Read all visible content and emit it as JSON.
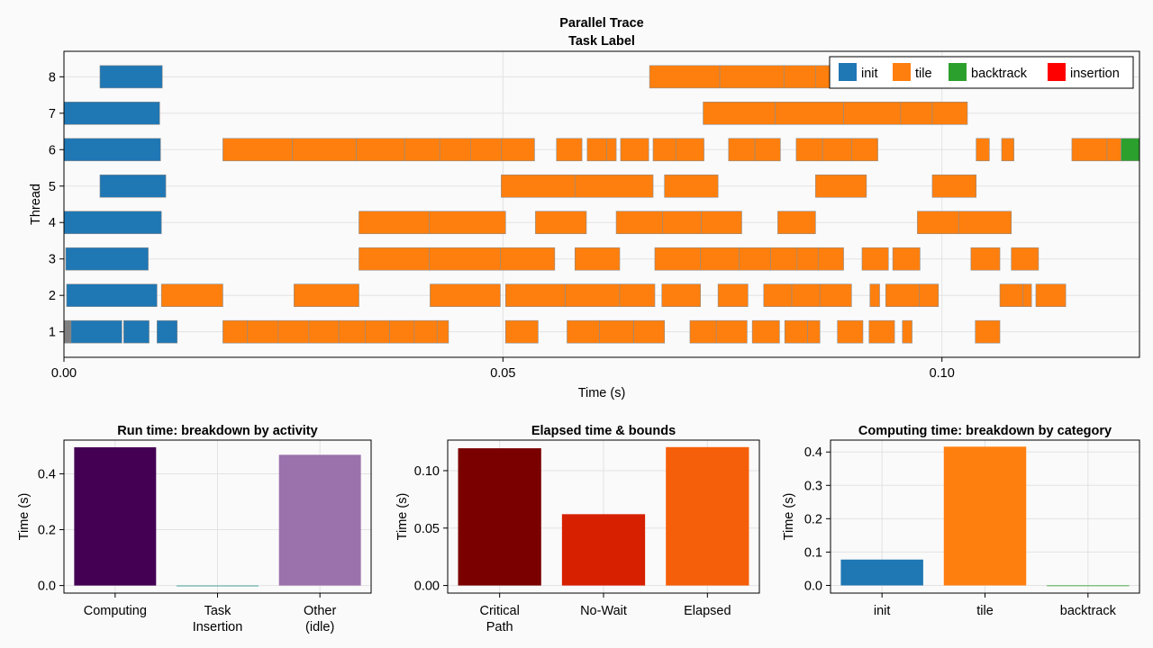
{
  "chart_data": [
    {
      "type": "gantt",
      "title": "Parallel Trace",
      "subtitle": "Task Label",
      "xlabel": "Time (s)",
      "ylabel": "Thread",
      "xlim": [
        0.0,
        0.1225
      ],
      "ylim": [
        0.3,
        8.7
      ],
      "xticks": [
        {
          "value": 0.0,
          "label": "0.00"
        },
        {
          "value": 0.05,
          "label": "0.05"
        },
        {
          "value": 0.1,
          "label": "0.10"
        }
      ],
      "yticks": [
        1,
        2,
        3,
        4,
        5,
        6,
        7,
        8
      ],
      "legend_position": "top-right",
      "legend": [
        {
          "label": "init",
          "color": "#1f77b4"
        },
        {
          "label": "tile",
          "color": "#ff7f0e"
        },
        {
          "label": "backtrack",
          "color": "#2ca02c"
        },
        {
          "label": "insertion",
          "color": "#ff0000"
        }
      ],
      "tasks": [
        {
          "thread": 1,
          "category": "other",
          "start": 0.0,
          "end": 0.0008
        },
        {
          "thread": 1,
          "category": "init",
          "start": 0.0008,
          "end": 0.0066
        },
        {
          "thread": 1,
          "category": "init",
          "start": 0.0068,
          "end": 0.0097
        },
        {
          "thread": 1,
          "category": "init",
          "start": 0.0106,
          "end": 0.0129
        },
        {
          "thread": 1,
          "category": "tile",
          "start": 0.0181,
          "end": 0.0209
        },
        {
          "thread": 1,
          "category": "tile",
          "start": 0.0209,
          "end": 0.0244
        },
        {
          "thread": 1,
          "category": "tile",
          "start": 0.0244,
          "end": 0.0279
        },
        {
          "thread": 1,
          "category": "tile",
          "start": 0.0279,
          "end": 0.0313
        },
        {
          "thread": 1,
          "category": "tile",
          "start": 0.0313,
          "end": 0.0343
        },
        {
          "thread": 1,
          "category": "tile",
          "start": 0.0343,
          "end": 0.0371
        },
        {
          "thread": 1,
          "category": "tile",
          "start": 0.0371,
          "end": 0.0399
        },
        {
          "thread": 1,
          "category": "tile",
          "start": 0.0399,
          "end": 0.0425
        },
        {
          "thread": 1,
          "category": "tile",
          "start": 0.0425,
          "end": 0.0438
        },
        {
          "thread": 1,
          "category": "tile",
          "start": 0.0503,
          "end": 0.054
        },
        {
          "thread": 1,
          "category": "tile",
          "start": 0.0573,
          "end": 0.061
        },
        {
          "thread": 1,
          "category": "tile",
          "start": 0.061,
          "end": 0.0649
        },
        {
          "thread": 1,
          "category": "tile",
          "start": 0.0649,
          "end": 0.0684
        },
        {
          "thread": 1,
          "category": "tile",
          "start": 0.0713,
          "end": 0.0743
        },
        {
          "thread": 1,
          "category": "tile",
          "start": 0.0743,
          "end": 0.0778
        },
        {
          "thread": 1,
          "category": "tile",
          "start": 0.0784,
          "end": 0.0815
        },
        {
          "thread": 1,
          "category": "tile",
          "start": 0.0821,
          "end": 0.0847
        },
        {
          "thread": 1,
          "category": "tile",
          "start": 0.0847,
          "end": 0.0861
        },
        {
          "thread": 1,
          "category": "tile",
          "start": 0.0881,
          "end": 0.091
        },
        {
          "thread": 1,
          "category": "tile",
          "start": 0.0917,
          "end": 0.0946
        },
        {
          "thread": 1,
          "category": "tile",
          "start": 0.0955,
          "end": 0.0966
        },
        {
          "thread": 1,
          "category": "tile",
          "start": 0.1038,
          "end": 0.1066
        },
        {
          "thread": 2,
          "category": "init",
          "start": 0.0003,
          "end": 0.0106
        },
        {
          "thread": 2,
          "category": "tile",
          "start": 0.0111,
          "end": 0.0181
        },
        {
          "thread": 2,
          "category": "tile",
          "start": 0.0262,
          "end": 0.0336
        },
        {
          "thread": 2,
          "category": "tile",
          "start": 0.0417,
          "end": 0.0497
        },
        {
          "thread": 2,
          "category": "tile",
          "start": 0.0503,
          "end": 0.0571
        },
        {
          "thread": 2,
          "category": "tile",
          "start": 0.0571,
          "end": 0.0633
        },
        {
          "thread": 2,
          "category": "tile",
          "start": 0.0633,
          "end": 0.0673
        },
        {
          "thread": 2,
          "category": "tile",
          "start": 0.0681,
          "end": 0.0725
        },
        {
          "thread": 2,
          "category": "tile",
          "start": 0.0745,
          "end": 0.0779
        },
        {
          "thread": 2,
          "category": "tile",
          "start": 0.0797,
          "end": 0.0829
        },
        {
          "thread": 2,
          "category": "tile",
          "start": 0.0829,
          "end": 0.0861
        },
        {
          "thread": 2,
          "category": "tile",
          "start": 0.0861,
          "end": 0.0897
        },
        {
          "thread": 2,
          "category": "tile",
          "start": 0.0918,
          "end": 0.0929
        },
        {
          "thread": 2,
          "category": "tile",
          "start": 0.0936,
          "end": 0.0974
        },
        {
          "thread": 2,
          "category": "tile",
          "start": 0.0974,
          "end": 0.0996
        },
        {
          "thread": 2,
          "category": "tile",
          "start": 0.1066,
          "end": 0.1092
        },
        {
          "thread": 2,
          "category": "tile",
          "start": 0.1092,
          "end": 0.1102
        },
        {
          "thread": 2,
          "category": "tile",
          "start": 0.1107,
          "end": 0.1141
        },
        {
          "thread": 3,
          "category": "init",
          "start": 0.0002,
          "end": 0.0096
        },
        {
          "thread": 3,
          "category": "tile",
          "start": 0.0336,
          "end": 0.0416
        },
        {
          "thread": 3,
          "category": "tile",
          "start": 0.0416,
          "end": 0.0497
        },
        {
          "thread": 3,
          "category": "tile",
          "start": 0.0497,
          "end": 0.0559
        },
        {
          "thread": 3,
          "category": "tile",
          "start": 0.0582,
          "end": 0.0633
        },
        {
          "thread": 3,
          "category": "tile",
          "start": 0.0673,
          "end": 0.0725
        },
        {
          "thread": 3,
          "category": "tile",
          "start": 0.0725,
          "end": 0.0769
        },
        {
          "thread": 3,
          "category": "tile",
          "start": 0.0769,
          "end": 0.0805
        },
        {
          "thread": 3,
          "category": "tile",
          "start": 0.0805,
          "end": 0.0835
        },
        {
          "thread": 3,
          "category": "tile",
          "start": 0.0835,
          "end": 0.0859
        },
        {
          "thread": 3,
          "category": "tile",
          "start": 0.0859,
          "end": 0.0888
        },
        {
          "thread": 3,
          "category": "tile",
          "start": 0.0909,
          "end": 0.0939
        },
        {
          "thread": 3,
          "category": "tile",
          "start": 0.0944,
          "end": 0.0975
        },
        {
          "thread": 3,
          "category": "tile",
          "start": 0.1033,
          "end": 0.1066
        },
        {
          "thread": 3,
          "category": "tile",
          "start": 0.1079,
          "end": 0.111
        },
        {
          "thread": 4,
          "category": "init",
          "start": 0.0,
          "end": 0.0111
        },
        {
          "thread": 4,
          "category": "tile",
          "start": 0.0336,
          "end": 0.0416
        },
        {
          "thread": 4,
          "category": "tile",
          "start": 0.0416,
          "end": 0.0503
        },
        {
          "thread": 4,
          "category": "tile",
          "start": 0.0537,
          "end": 0.0595
        },
        {
          "thread": 4,
          "category": "tile",
          "start": 0.0629,
          "end": 0.0682
        },
        {
          "thread": 4,
          "category": "tile",
          "start": 0.0682,
          "end": 0.0726
        },
        {
          "thread": 4,
          "category": "tile",
          "start": 0.0726,
          "end": 0.0772
        },
        {
          "thread": 4,
          "category": "tile",
          "start": 0.0813,
          "end": 0.0856
        },
        {
          "thread": 4,
          "category": "tile",
          "start": 0.0972,
          "end": 0.1019
        },
        {
          "thread": 4,
          "category": "tile",
          "start": 0.1019,
          "end": 0.1079
        },
        {
          "thread": 5,
          "category": "init",
          "start": 0.0041,
          "end": 0.0116
        },
        {
          "thread": 5,
          "category": "tile",
          "start": 0.0498,
          "end": 0.0582
        },
        {
          "thread": 5,
          "category": "tile",
          "start": 0.0582,
          "end": 0.0671
        },
        {
          "thread": 5,
          "category": "tile",
          "start": 0.0684,
          "end": 0.0745
        },
        {
          "thread": 5,
          "category": "tile",
          "start": 0.0856,
          "end": 0.0914
        },
        {
          "thread": 5,
          "category": "tile",
          "start": 0.0989,
          "end": 0.1039
        },
        {
          "thread": 6,
          "category": "init",
          "start": 0.0,
          "end": 0.011
        },
        {
          "thread": 6,
          "category": "tile",
          "start": 0.0181,
          "end": 0.026
        },
        {
          "thread": 6,
          "category": "tile",
          "start": 0.026,
          "end": 0.0333
        },
        {
          "thread": 6,
          "category": "tile",
          "start": 0.0333,
          "end": 0.0388
        },
        {
          "thread": 6,
          "category": "tile",
          "start": 0.0388,
          "end": 0.0428
        },
        {
          "thread": 6,
          "category": "tile",
          "start": 0.0428,
          "end": 0.0463
        },
        {
          "thread": 6,
          "category": "tile",
          "start": 0.0463,
          "end": 0.0498
        },
        {
          "thread": 6,
          "category": "tile",
          "start": 0.0498,
          "end": 0.0536
        },
        {
          "thread": 6,
          "category": "tile",
          "start": 0.0561,
          "end": 0.059
        },
        {
          "thread": 6,
          "category": "tile",
          "start": 0.0596,
          "end": 0.0618
        },
        {
          "thread": 6,
          "category": "tile",
          "start": 0.0618,
          "end": 0.0629
        },
        {
          "thread": 6,
          "category": "tile",
          "start": 0.0634,
          "end": 0.0666
        },
        {
          "thread": 6,
          "category": "tile",
          "start": 0.0671,
          "end": 0.0697
        },
        {
          "thread": 6,
          "category": "tile",
          "start": 0.0697,
          "end": 0.0729
        },
        {
          "thread": 6,
          "category": "tile",
          "start": 0.0757,
          "end": 0.0787
        },
        {
          "thread": 6,
          "category": "tile",
          "start": 0.0787,
          "end": 0.0816
        },
        {
          "thread": 6,
          "category": "tile",
          "start": 0.0834,
          "end": 0.0864
        },
        {
          "thread": 6,
          "category": "tile",
          "start": 0.0864,
          "end": 0.0897
        },
        {
          "thread": 6,
          "category": "tile",
          "start": 0.0897,
          "end": 0.0927
        },
        {
          "thread": 6,
          "category": "tile",
          "start": 0.1039,
          "end": 0.1054
        },
        {
          "thread": 6,
          "category": "tile",
          "start": 0.1068,
          "end": 0.1082
        },
        {
          "thread": 6,
          "category": "tile",
          "start": 0.1148,
          "end": 0.1188
        },
        {
          "thread": 6,
          "category": "tile",
          "start": 0.1188,
          "end": 0.1204
        },
        {
          "thread": 6,
          "category": "backtrack",
          "start": 0.1204,
          "end": 0.1225
        },
        {
          "thread": 7,
          "category": "init",
          "start": 0.0,
          "end": 0.0109
        },
        {
          "thread": 7,
          "category": "tile",
          "start": 0.0728,
          "end": 0.081
        },
        {
          "thread": 7,
          "category": "tile",
          "start": 0.081,
          "end": 0.0888
        },
        {
          "thread": 7,
          "category": "tile",
          "start": 0.0888,
          "end": 0.0953
        },
        {
          "thread": 7,
          "category": "tile",
          "start": 0.0953,
          "end": 0.0989
        },
        {
          "thread": 7,
          "category": "tile",
          "start": 0.0989,
          "end": 0.1029
        },
        {
          "thread": 8,
          "category": "init",
          "start": 0.0041,
          "end": 0.0112
        },
        {
          "thread": 8,
          "category": "tile",
          "start": 0.0667,
          "end": 0.0747
        },
        {
          "thread": 8,
          "category": "tile",
          "start": 0.0747,
          "end": 0.082
        },
        {
          "thread": 8,
          "category": "tile",
          "start": 0.082,
          "end": 0.0856
        },
        {
          "thread": 8,
          "category": "tile",
          "start": 0.0856,
          "end": 0.09
        }
      ]
    },
    {
      "type": "bar",
      "title": "Run time: breakdown by activity",
      "ylabel": "Time (s)",
      "ylim": [
        -0.027,
        0.5206
      ],
      "yticks": [
        {
          "value": 0.0,
          "label": "0.0"
        },
        {
          "value": 0.2,
          "label": "0.2"
        },
        {
          "value": 0.4,
          "label": "0.4"
        }
      ],
      "categories": [
        [
          "Computing"
        ],
        [
          "Task",
          "Insertion"
        ],
        [
          "Other",
          "(idle)"
        ]
      ],
      "values": [
        0.495,
        0.0,
        0.468
      ],
      "colors": [
        "#440154",
        "#21918c",
        "#9b72ac"
      ]
    },
    {
      "type": "bar",
      "title": "Elapsed time & bounds",
      "ylabel": "Time (s)",
      "ylim": [
        -0.0066,
        0.1266
      ],
      "yticks": [
        {
          "value": 0.0,
          "label": "0.00"
        },
        {
          "value": 0.05,
          "label": "0.05"
        },
        {
          "value": 0.1,
          "label": "0.10"
        }
      ],
      "categories": [
        [
          "Critical",
          "Path"
        ],
        [
          "No-Wait"
        ],
        [
          "Elapsed"
        ]
      ],
      "values": [
        0.1195,
        0.0621,
        0.1205
      ],
      "colors": [
        "#7a0000",
        "#d62000",
        "#f55f0a"
      ]
    },
    {
      "type": "bar",
      "title": "Computing time: breakdown by category",
      "ylabel": "Time (s)",
      "ylim": [
        -0.023,
        0.4357
      ],
      "yticks": [
        {
          "value": 0.0,
          "label": "0.0"
        },
        {
          "value": 0.1,
          "label": "0.1"
        },
        {
          "value": 0.2,
          "label": "0.2"
        },
        {
          "value": 0.3,
          "label": "0.3"
        },
        {
          "value": 0.4,
          "label": "0.4"
        }
      ],
      "categories": [
        [
          "init"
        ],
        [
          "tile"
        ],
        [
          "backtrack"
        ]
      ],
      "values": [
        0.0775,
        0.416,
        0.0
      ],
      "colors": [
        "#1f77b4",
        "#ff7f0e",
        "#2ca02c"
      ]
    }
  ]
}
